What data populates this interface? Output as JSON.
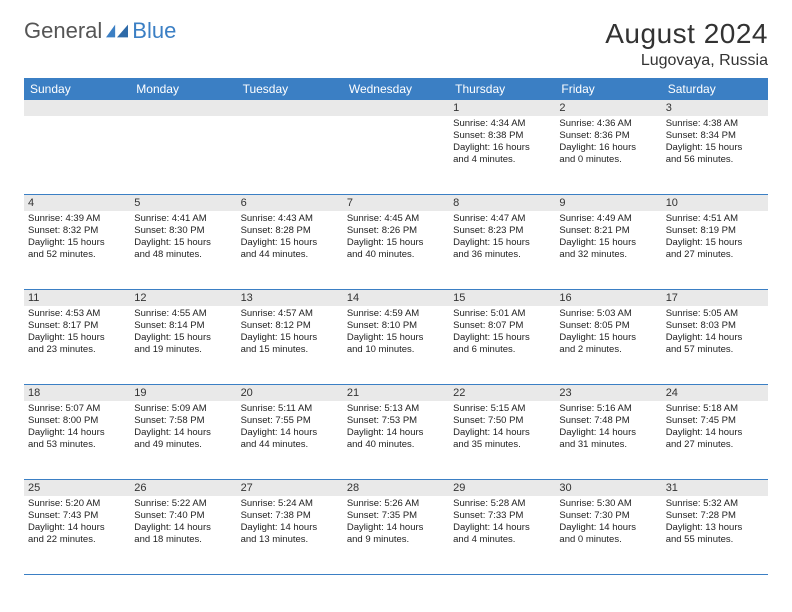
{
  "brand": {
    "name1": "General",
    "name2": "Blue",
    "color": "#3b7fc4"
  },
  "title": "August 2024",
  "location": "Lugovaya, Russia",
  "dow": [
    "Sunday",
    "Monday",
    "Tuesday",
    "Wednesday",
    "Thursday",
    "Friday",
    "Saturday"
  ],
  "weeks": [
    [
      {
        "n": "",
        "sr": "",
        "ss": "",
        "dl1": "",
        "dl2": ""
      },
      {
        "n": "",
        "sr": "",
        "ss": "",
        "dl1": "",
        "dl2": ""
      },
      {
        "n": "",
        "sr": "",
        "ss": "",
        "dl1": "",
        "dl2": ""
      },
      {
        "n": "",
        "sr": "",
        "ss": "",
        "dl1": "",
        "dl2": ""
      },
      {
        "n": "1",
        "sr": "Sunrise: 4:34 AM",
        "ss": "Sunset: 8:38 PM",
        "dl1": "Daylight: 16 hours",
        "dl2": "and 4 minutes."
      },
      {
        "n": "2",
        "sr": "Sunrise: 4:36 AM",
        "ss": "Sunset: 8:36 PM",
        "dl1": "Daylight: 16 hours",
        "dl2": "and 0 minutes."
      },
      {
        "n": "3",
        "sr": "Sunrise: 4:38 AM",
        "ss": "Sunset: 8:34 PM",
        "dl1": "Daylight: 15 hours",
        "dl2": "and 56 minutes."
      }
    ],
    [
      {
        "n": "4",
        "sr": "Sunrise: 4:39 AM",
        "ss": "Sunset: 8:32 PM",
        "dl1": "Daylight: 15 hours",
        "dl2": "and 52 minutes."
      },
      {
        "n": "5",
        "sr": "Sunrise: 4:41 AM",
        "ss": "Sunset: 8:30 PM",
        "dl1": "Daylight: 15 hours",
        "dl2": "and 48 minutes."
      },
      {
        "n": "6",
        "sr": "Sunrise: 4:43 AM",
        "ss": "Sunset: 8:28 PM",
        "dl1": "Daylight: 15 hours",
        "dl2": "and 44 minutes."
      },
      {
        "n": "7",
        "sr": "Sunrise: 4:45 AM",
        "ss": "Sunset: 8:26 PM",
        "dl1": "Daylight: 15 hours",
        "dl2": "and 40 minutes."
      },
      {
        "n": "8",
        "sr": "Sunrise: 4:47 AM",
        "ss": "Sunset: 8:23 PM",
        "dl1": "Daylight: 15 hours",
        "dl2": "and 36 minutes."
      },
      {
        "n": "9",
        "sr": "Sunrise: 4:49 AM",
        "ss": "Sunset: 8:21 PM",
        "dl1": "Daylight: 15 hours",
        "dl2": "and 32 minutes."
      },
      {
        "n": "10",
        "sr": "Sunrise: 4:51 AM",
        "ss": "Sunset: 8:19 PM",
        "dl1": "Daylight: 15 hours",
        "dl2": "and 27 minutes."
      }
    ],
    [
      {
        "n": "11",
        "sr": "Sunrise: 4:53 AM",
        "ss": "Sunset: 8:17 PM",
        "dl1": "Daylight: 15 hours",
        "dl2": "and 23 minutes."
      },
      {
        "n": "12",
        "sr": "Sunrise: 4:55 AM",
        "ss": "Sunset: 8:14 PM",
        "dl1": "Daylight: 15 hours",
        "dl2": "and 19 minutes."
      },
      {
        "n": "13",
        "sr": "Sunrise: 4:57 AM",
        "ss": "Sunset: 8:12 PM",
        "dl1": "Daylight: 15 hours",
        "dl2": "and 15 minutes."
      },
      {
        "n": "14",
        "sr": "Sunrise: 4:59 AM",
        "ss": "Sunset: 8:10 PM",
        "dl1": "Daylight: 15 hours",
        "dl2": "and 10 minutes."
      },
      {
        "n": "15",
        "sr": "Sunrise: 5:01 AM",
        "ss": "Sunset: 8:07 PM",
        "dl1": "Daylight: 15 hours",
        "dl2": "and 6 minutes."
      },
      {
        "n": "16",
        "sr": "Sunrise: 5:03 AM",
        "ss": "Sunset: 8:05 PM",
        "dl1": "Daylight: 15 hours",
        "dl2": "and 2 minutes."
      },
      {
        "n": "17",
        "sr": "Sunrise: 5:05 AM",
        "ss": "Sunset: 8:03 PM",
        "dl1": "Daylight: 14 hours",
        "dl2": "and 57 minutes."
      }
    ],
    [
      {
        "n": "18",
        "sr": "Sunrise: 5:07 AM",
        "ss": "Sunset: 8:00 PM",
        "dl1": "Daylight: 14 hours",
        "dl2": "and 53 minutes."
      },
      {
        "n": "19",
        "sr": "Sunrise: 5:09 AM",
        "ss": "Sunset: 7:58 PM",
        "dl1": "Daylight: 14 hours",
        "dl2": "and 49 minutes."
      },
      {
        "n": "20",
        "sr": "Sunrise: 5:11 AM",
        "ss": "Sunset: 7:55 PM",
        "dl1": "Daylight: 14 hours",
        "dl2": "and 44 minutes."
      },
      {
        "n": "21",
        "sr": "Sunrise: 5:13 AM",
        "ss": "Sunset: 7:53 PM",
        "dl1": "Daylight: 14 hours",
        "dl2": "and 40 minutes."
      },
      {
        "n": "22",
        "sr": "Sunrise: 5:15 AM",
        "ss": "Sunset: 7:50 PM",
        "dl1": "Daylight: 14 hours",
        "dl2": "and 35 minutes."
      },
      {
        "n": "23",
        "sr": "Sunrise: 5:16 AM",
        "ss": "Sunset: 7:48 PM",
        "dl1": "Daylight: 14 hours",
        "dl2": "and 31 minutes."
      },
      {
        "n": "24",
        "sr": "Sunrise: 5:18 AM",
        "ss": "Sunset: 7:45 PM",
        "dl1": "Daylight: 14 hours",
        "dl2": "and 27 minutes."
      }
    ],
    [
      {
        "n": "25",
        "sr": "Sunrise: 5:20 AM",
        "ss": "Sunset: 7:43 PM",
        "dl1": "Daylight: 14 hours",
        "dl2": "and 22 minutes."
      },
      {
        "n": "26",
        "sr": "Sunrise: 5:22 AM",
        "ss": "Sunset: 7:40 PM",
        "dl1": "Daylight: 14 hours",
        "dl2": "and 18 minutes."
      },
      {
        "n": "27",
        "sr": "Sunrise: 5:24 AM",
        "ss": "Sunset: 7:38 PM",
        "dl1": "Daylight: 14 hours",
        "dl2": "and 13 minutes."
      },
      {
        "n": "28",
        "sr": "Sunrise: 5:26 AM",
        "ss": "Sunset: 7:35 PM",
        "dl1": "Daylight: 14 hours",
        "dl2": "and 9 minutes."
      },
      {
        "n": "29",
        "sr": "Sunrise: 5:28 AM",
        "ss": "Sunset: 7:33 PM",
        "dl1": "Daylight: 14 hours",
        "dl2": "and 4 minutes."
      },
      {
        "n": "30",
        "sr": "Sunrise: 5:30 AM",
        "ss": "Sunset: 7:30 PM",
        "dl1": "Daylight: 14 hours",
        "dl2": "and 0 minutes."
      },
      {
        "n": "31",
        "sr": "Sunrise: 5:32 AM",
        "ss": "Sunset: 7:28 PM",
        "dl1": "Daylight: 13 hours",
        "dl2": "and 55 minutes."
      }
    ]
  ],
  "style": {
    "header_bg": "#3b7fc4",
    "daynum_bg": "#e9e9e9",
    "border_color": "#3b7fc4",
    "page_bg": "#ffffff"
  }
}
